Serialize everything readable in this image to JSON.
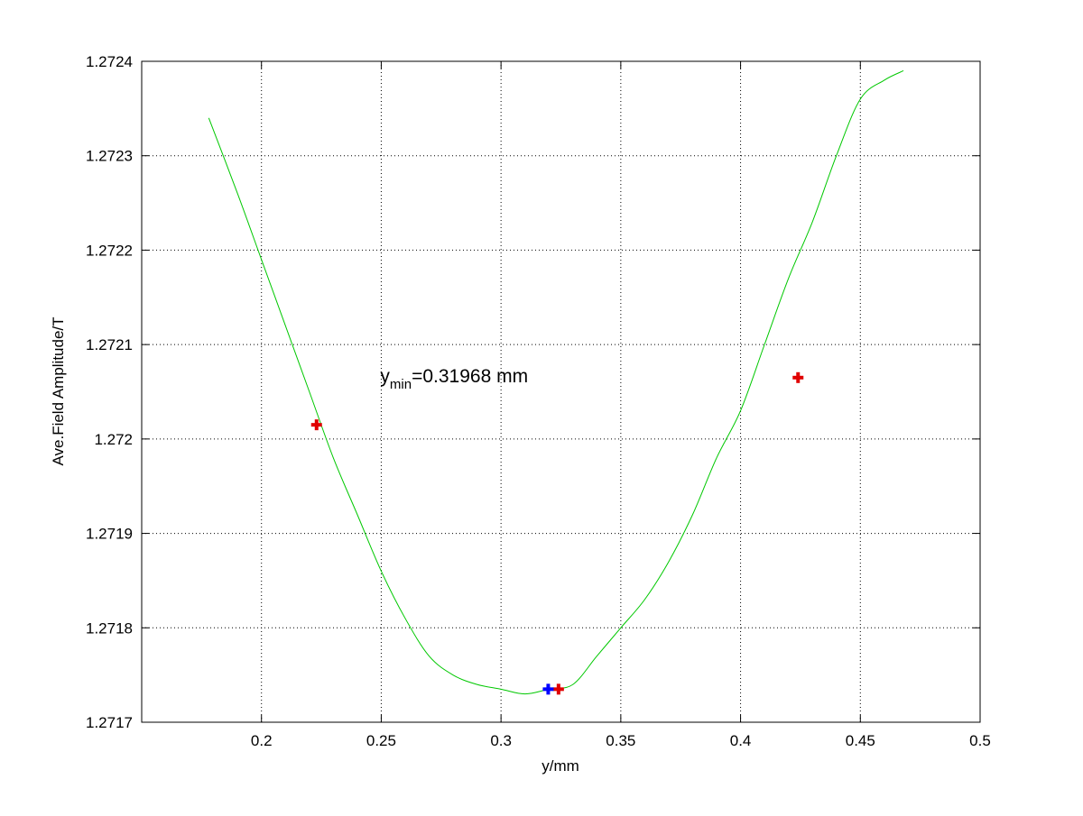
{
  "chart_data": {
    "type": "line",
    "title": "",
    "xlabel": "y/mm",
    "ylabel": "Ave.Field Amplitude/T",
    "xlim": [
      0.15,
      0.5
    ],
    "ylim": [
      1.2717,
      1.2724
    ],
    "xticks": [
      0.2,
      0.25,
      0.3,
      0.35,
      0.4,
      0.45,
      0.5
    ],
    "xtick_labels": [
      "0.2",
      "0.25",
      "0.3",
      "0.35",
      "0.4",
      "0.45",
      "0.5"
    ],
    "yticks": [
      1.2717,
      1.2718,
      1.2719,
      1.272,
      1.2721,
      1.2722,
      1.2723,
      1.2724
    ],
    "ytick_labels": [
      "1.2717",
      "1.2718",
      "1.2719",
      "1.272",
      "1.2721",
      "1.2722",
      "1.2723",
      "1.2724"
    ],
    "grid": true,
    "grid_style": "dotted",
    "legend": "none",
    "series": [
      {
        "kind": "line",
        "color": "#00c800",
        "x": [
          0.178,
          0.19,
          0.2,
          0.21,
          0.22,
          0.23,
          0.24,
          0.25,
          0.26,
          0.27,
          0.28,
          0.29,
          0.3,
          0.31,
          0.32,
          0.33,
          0.34,
          0.35,
          0.36,
          0.37,
          0.38,
          0.39,
          0.4,
          0.41,
          0.42,
          0.43,
          0.44,
          0.45,
          0.46,
          0.468
        ],
        "y": [
          1.27234,
          1.27226,
          1.27219,
          1.27212,
          1.27205,
          1.27198,
          1.27192,
          1.27186,
          1.27181,
          1.27177,
          1.27175,
          1.27174,
          1.271735,
          1.27173,
          1.271735,
          1.27174,
          1.27177,
          1.2718,
          1.27183,
          1.27187,
          1.27192,
          1.27198,
          1.27203,
          1.2721,
          1.27217,
          1.27223,
          1.2723,
          1.27236,
          1.27238,
          1.27239
        ]
      },
      {
        "kind": "markers",
        "marker": "plus",
        "color": "#e00000",
        "x": [
          0.223,
          0.324,
          0.424
        ],
        "y": [
          1.272015,
          1.271735,
          1.272065
        ]
      },
      {
        "kind": "markers",
        "marker": "plus",
        "color": "#0000ff",
        "x": [
          0.3197
        ],
        "y": [
          1.271735
        ]
      }
    ],
    "annotation": {
      "base": "y",
      "subscript": "min",
      "rest": "=0.31968 mm",
      "x": 0.25,
      "y": 1.27206
    }
  }
}
